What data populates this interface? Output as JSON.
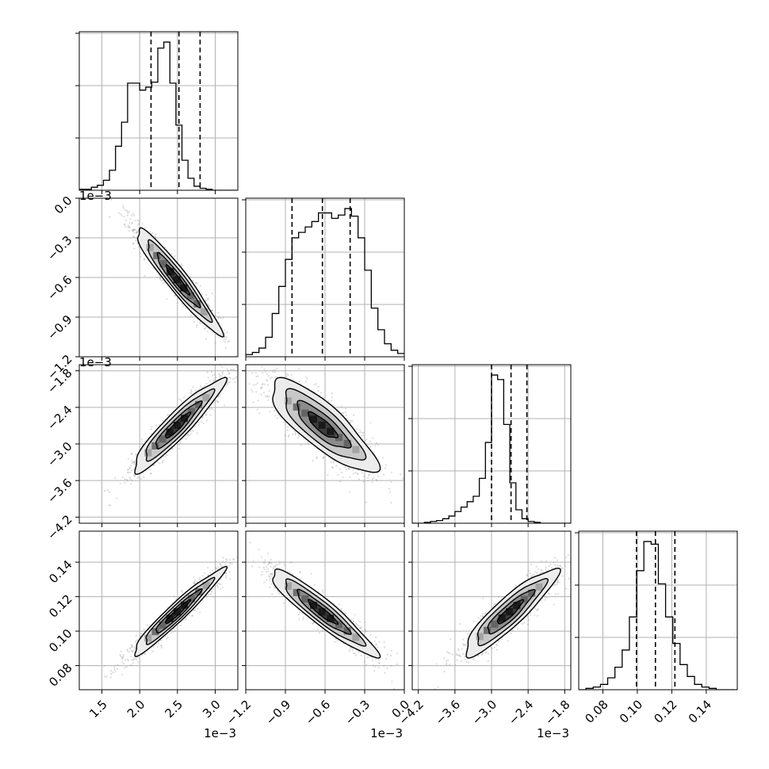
{
  "chart_data": {
    "type": "corner",
    "params": [
      {
        "range": [
          1.2,
          3.3
        ],
        "ticks": [
          1.5,
          2.0,
          2.5,
          3.0
        ],
        "tick_labels": [
          "1.5",
          "2.0",
          "2.5",
          "3.0"
        ],
        "offset": "1e−3",
        "quantiles": [
          2.15,
          2.52,
          2.8
        ],
        "hist_edges_start": 1.2,
        "hist_bin_width": 0.08,
        "hist_counts": [
          1,
          1,
          3,
          5,
          10,
          20,
          44,
          68,
          107,
          107,
          100,
          103,
          108,
          142,
          148,
          107,
          65,
          30,
          12,
          4,
          2,
          1,
          0,
          0,
          0,
          0
        ]
      },
      {
        "range": [
          -1.2,
          0.0
        ],
        "ticks": [
          -1.2,
          -0.9,
          -0.6,
          -0.3,
          0.0
        ],
        "tick_labels": [
          "−1.2",
          "−0.9",
          "−0.6",
          "−0.3",
          "0.0"
        ],
        "offset": "1e−3",
        "quantiles": [
          -0.85,
          -0.62,
          -0.41
        ],
        "hist_edges_start": -1.2,
        "hist_bin_width": 0.05,
        "hist_counts": [
          2,
          4,
          8,
          18,
          40,
          65,
          90,
          110,
          115,
          120,
          125,
          133,
          133,
          128,
          131,
          137,
          130,
          110,
          80,
          45,
          25,
          12,
          6,
          3
        ]
      },
      {
        "range": [
          -4.3,
          -1.7
        ],
        "ticks": [
          -4.2,
          -3.6,
          -3.0,
          -2.4,
          -1.8
        ],
        "tick_labels": [
          "−4.2",
          "−3.6",
          "−3.0",
          "−2.4",
          "−1.8"
        ],
        "offset": "1e−3",
        "quantiles": [
          -3.0,
          -2.68,
          -2.42
        ],
        "hist_edges_start": -4.3,
        "hist_bin_width": 0.1,
        "hist_counts": [
          0,
          0,
          1,
          2,
          3,
          5,
          8,
          13,
          18,
          24,
          30,
          50,
          90,
          165,
          160,
          110,
          45,
          15,
          5,
          2,
          1,
          0,
          0,
          0,
          0,
          0
        ]
      },
      {
        "range": [
          0.066,
          0.158
        ],
        "ticks": [
          0.08,
          0.1,
          0.12,
          0.14
        ],
        "tick_labels": [
          "0.08",
          "0.10",
          "0.12",
          "0.14"
        ],
        "offset": "",
        "quantiles": [
          0.0995,
          0.1105,
          0.1218
        ],
        "hist_edges_start": 0.066,
        "hist_bin_width": 0.0042,
        "hist_counts": [
          0,
          1,
          2,
          4,
          9,
          17,
          30,
          55,
          90,
          112,
          110,
          80,
          55,
          35,
          19,
          10,
          4,
          2,
          1,
          0,
          0,
          0
        ]
      }
    ],
    "pairs": [
      {
        "x": 0,
        "y": 1,
        "ticks_y": [
          0.0,
          -0.3,
          -0.6,
          -0.9,
          -1.2
        ],
        "tick_labels_y": [
          "0.0",
          "−0.3",
          "−0.6",
          "−0.9",
          "−1.2"
        ],
        "offset_y": "1e−3",
        "mean": [
          2.5,
          -0.62
        ],
        "sd": [
          0.28,
          0.2
        ],
        "corr": -0.95
      },
      {
        "x": 0,
        "y": 2,
        "ticks_y": [
          -1.8,
          -2.4,
          -3.0,
          -3.6,
          -4.2
        ],
        "tick_labels_y": [
          "−1.8",
          "−2.4",
          "−3.0",
          "−3.6",
          "−4.2"
        ],
        "offset_y": "1e−3",
        "mean": [
          2.5,
          -2.7
        ],
        "sd": [
          0.3,
          0.38
        ],
        "corr": 0.93
      },
      {
        "x": 1,
        "y": 2,
        "mean": [
          -0.62,
          -2.7
        ],
        "sd": [
          0.2,
          0.38
        ],
        "corr": -0.82
      },
      {
        "x": 0,
        "y": 3,
        "ticks_y": [
          0.08,
          0.1,
          0.12,
          0.14
        ],
        "tick_labels_y": [
          "0.08",
          "0.10",
          "0.12",
          "0.14"
        ],
        "offset_y": "",
        "mean": [
          2.5,
          0.111
        ],
        "sd": [
          0.3,
          0.0125
        ],
        "corr": 0.96
      },
      {
        "x": 1,
        "y": 3,
        "mean": [
          -0.62,
          0.111
        ],
        "sd": [
          0.2,
          0.0125
        ],
        "corr": -0.93
      },
      {
        "x": 2,
        "y": 3,
        "mean": [
          -2.7,
          0.111
        ],
        "sd": [
          0.38,
          0.0125
        ],
        "corr": 0.9
      }
    ],
    "grid": true,
    "colors": {
      "points": "#9a9a9a",
      "contour": "#000000",
      "grid": "#b0b0b0",
      "density_dark": "#000000",
      "density_light": "#ffffff"
    }
  }
}
